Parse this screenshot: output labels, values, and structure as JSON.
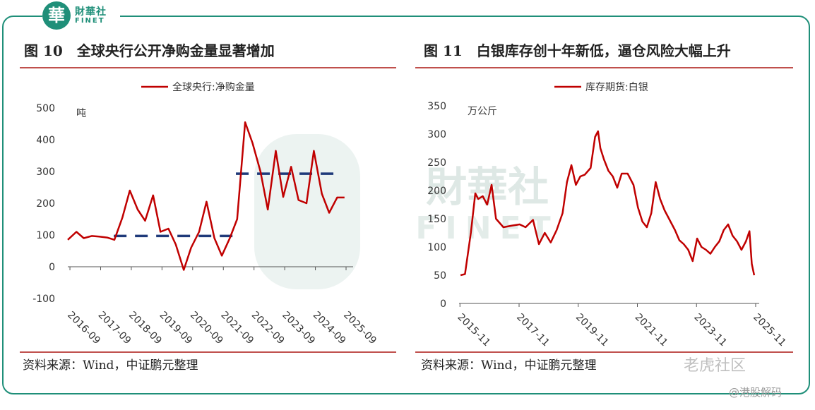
{
  "logo": {
    "badge": "華",
    "cn": "財華社",
    "en": "FINET"
  },
  "watermarks": {
    "center_cn": "財華社",
    "center_en": "FINET",
    "tiger": "老虎社区",
    "hk": "@港股解码"
  },
  "panels": [
    {
      "title_num": "图 10",
      "title_text": "全球央行公开净购金量显著增加",
      "source": "资料来源：Wind，中证鹏元整理"
    },
    {
      "title_num": "图 11",
      "title_text": "白银库存创十年新低，逼仓风险大幅上升",
      "source": "资料来源：Wind，中证鹏元整理"
    }
  ],
  "chart_data": [
    {
      "type": "line",
      "legend": "全球央行:净购金量",
      "unit_label": "吨",
      "ylim": [
        -100,
        500
      ],
      "yticks": [
        -100,
        0,
        100,
        200,
        300,
        400,
        500
      ],
      "xlim": [
        2016.6,
        2025.9
      ],
      "xtick_values": [
        2016.67,
        2017.67,
        2018.67,
        2019.67,
        2020.67,
        2021.67,
        2022.67,
        2023.67,
        2024.67,
        2025.67
      ],
      "xtick_labels": [
        "2016-09",
        "2017-09",
        "2018-09",
        "2019-09",
        "2020-09",
        "2021-09",
        "2022-09",
        "2023-09",
        "2024-09",
        "2025-09"
      ],
      "color": "#c00000",
      "x": [
        2016.6,
        2016.88,
        2017.12,
        2017.38,
        2017.62,
        2017.88,
        2018.12,
        2018.38,
        2018.62,
        2018.88,
        2019.12,
        2019.38,
        2019.62,
        2019.88,
        2020.12,
        2020.38,
        2020.62,
        2020.88,
        2021.12,
        2021.38,
        2021.62,
        2021.88,
        2022.12,
        2022.38,
        2022.62,
        2022.88,
        2023.12,
        2023.38,
        2023.62,
        2023.88,
        2024.12,
        2024.38,
        2024.62,
        2024.88,
        2025.12,
        2025.38,
        2025.62
      ],
      "values": [
        85,
        110,
        90,
        97,
        95,
        92,
        85,
        155,
        240,
        180,
        145,
        225,
        110,
        120,
        70,
        -10,
        60,
        110,
        205,
        90,
        35,
        90,
        150,
        455,
        390,
        300,
        180,
        365,
        220,
        315,
        210,
        200,
        365,
        230,
        170,
        218,
        218
      ],
      "averages": [
        {
          "from": 2018.1,
          "to": 2022.08,
          "value": 97
        },
        {
          "from": 2022.08,
          "to": 2025.5,
          "value": 293
        }
      ]
    },
    {
      "type": "line",
      "legend": "库存期货:白银",
      "unit_label": "万公斤",
      "ylim": [
        0,
        350
      ],
      "yticks": [
        0,
        50,
        100,
        150,
        200,
        250,
        300,
        350
      ],
      "xlim": [
        2015.8,
        2025.95
      ],
      "xtick_values": [
        2015.83,
        2017.83,
        2019.83,
        2021.83,
        2023.83,
        2025.83
      ],
      "xtick_labels": [
        "2015-11",
        "2017-11",
        "2019-11",
        "2021-11",
        "2023-11",
        "2025-11"
      ],
      "color": "#c00000",
      "x": [
        2015.85,
        2016.0,
        2016.2,
        2016.35,
        2016.45,
        2016.6,
        2016.75,
        2016.9,
        2017.05,
        2017.3,
        2017.6,
        2017.85,
        2018.05,
        2018.3,
        2018.5,
        2018.7,
        2018.9,
        2019.1,
        2019.3,
        2019.45,
        2019.6,
        2019.75,
        2019.9,
        2020.05,
        2020.25,
        2020.4,
        2020.5,
        2020.58,
        2020.7,
        2020.85,
        2021.0,
        2021.15,
        2021.3,
        2021.5,
        2021.7,
        2021.85,
        2022.0,
        2022.15,
        2022.3,
        2022.45,
        2022.6,
        2022.75,
        2022.9,
        2023.1,
        2023.25,
        2023.4,
        2023.55,
        2023.7,
        2023.85,
        2024.0,
        2024.15,
        2024.3,
        2024.45,
        2024.6,
        2024.75,
        2024.9,
        2025.05,
        2025.2,
        2025.35,
        2025.5,
        2025.62,
        2025.7,
        2025.78
      ],
      "values": [
        50,
        52,
        125,
        195,
        185,
        190,
        175,
        210,
        150,
        135,
        138,
        140,
        135,
        148,
        105,
        125,
        108,
        130,
        160,
        215,
        245,
        210,
        225,
        228,
        240,
        295,
        305,
        275,
        255,
        235,
        225,
        205,
        230,
        230,
        210,
        170,
        145,
        135,
        160,
        215,
        185,
        165,
        150,
        130,
        112,
        105,
        95,
        75,
        115,
        100,
        95,
        88,
        100,
        110,
        130,
        140,
        120,
        110,
        95,
        110,
        128,
        70,
        50
      ]
    }
  ]
}
